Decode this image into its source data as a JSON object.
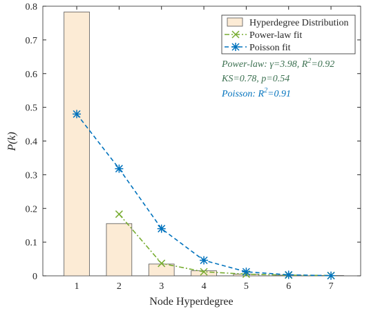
{
  "chart_data": {
    "type": "bar",
    "xlabel": "Node Hyperdegree",
    "ylabel": "P(k)",
    "x": [
      1,
      2,
      3,
      4,
      5,
      6,
      7
    ],
    "xlim": [
      0.2,
      7.7
    ],
    "xticks": [
      1,
      2,
      3,
      4,
      5,
      6,
      7
    ],
    "ylim": [
      0,
      0.8
    ],
    "yticks": [
      0,
      0.1,
      0.2,
      0.3,
      0.4,
      0.5,
      0.6,
      0.7,
      0.8
    ],
    "grid": false,
    "legend": "top-right",
    "series": [
      {
        "name": "Hyperdegree Distribution",
        "type": "bar",
        "color": "#fcebd5",
        "edge": "#555555",
        "values": [
          0.783,
          0.155,
          0.035,
          0.015,
          0.005,
          0.002,
          0.001
        ]
      },
      {
        "name": "Power-law fit",
        "type": "line",
        "color": "#77ac30",
        "dash": "dashdot",
        "marker": "x",
        "values": [
          null,
          0.183,
          0.037,
          0.012,
          0.005,
          0.002,
          0.001
        ]
      },
      {
        "name": "Poisson fit",
        "type": "line",
        "color": "#0072bd",
        "dash": "dashed",
        "marker": "asterisk",
        "values": [
          0.48,
          0.318,
          0.14,
          0.046,
          0.012,
          0.003,
          0.0005
        ]
      }
    ],
    "annotations": [
      {
        "text": "Power-law: γ=3.98, R",
        "sup": "2",
        "tail": "=0.92",
        "color": "#3b7050"
      },
      {
        "text": "KS=0.78, p=0.54",
        "color": "#3b7050"
      },
      {
        "text": "Poisson: R",
        "sup": "2",
        "tail": "=0.91",
        "color": "#0072bd"
      }
    ]
  }
}
